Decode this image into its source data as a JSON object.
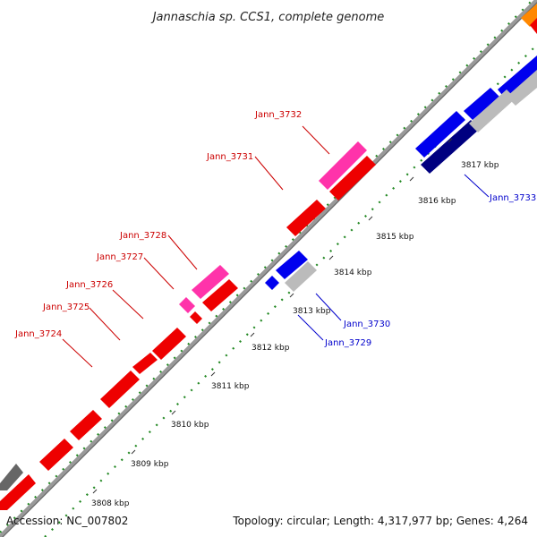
{
  "title": "Jannaschia sp. CCS1, complete genome",
  "footer": {
    "accession": "Accession: NC_007802",
    "summary": "Topology: circular; Length: 4,317,977 bp; Genes: 4,264"
  },
  "ticks": [
    "3808 kbp",
    "3809 kbp",
    "3810 kbp",
    "3811 kbp",
    "3812 kbp",
    "3813 kbp",
    "3814 kbp",
    "3815 kbp",
    "3816 kbp",
    "3817 kbp"
  ],
  "labels": {
    "forward": [
      "Jann_3732",
      "Jann_3731",
      "Jann_3728",
      "Jann_3727",
      "Jann_3726",
      "Jann_3725",
      "Jann_3724"
    ],
    "reverse": [
      "Jann_3733",
      "Jann_3730",
      "Jann_3729"
    ]
  },
  "colors": {
    "forward_cds": "#ff0000",
    "forward_highlight": "#ff33aa",
    "reverse_cds": "#0000ee",
    "reverse_dark": "#000080",
    "unknown": "#bbbbbb",
    "dark_gene": "#666666",
    "orange_gene": "#ff8800",
    "backbone": "#888888",
    "gc_dots": "#228822",
    "label_forward": "#cc0000",
    "label_reverse": "#0000cc"
  }
}
